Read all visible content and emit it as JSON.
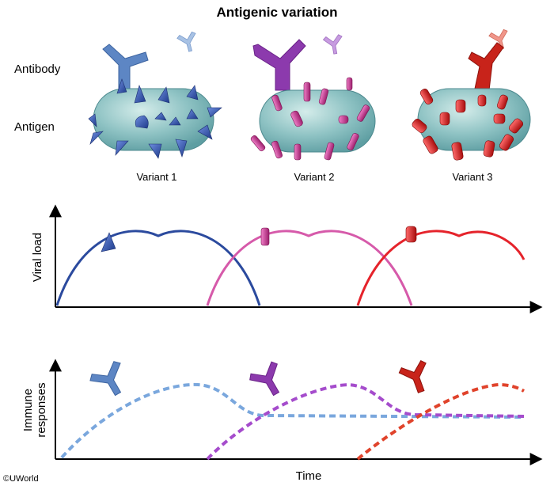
{
  "title": "Antigenic variation",
  "row_labels": {
    "antibody": "Antibody",
    "antigen": "Antigen"
  },
  "variants": [
    {
      "label": "Variant 1",
      "spike_shape": "pyramid",
      "color": "#2f4fa8",
      "antibody_color": "#5d86c4",
      "antibody_light": "#a8c2e4"
    },
    {
      "label": "Variant 2",
      "spike_shape": "cylinder",
      "color": "#c0308c",
      "antibody_color": "#8c3aad",
      "antibody_light": "#c79be0"
    },
    {
      "label": "Variant 3",
      "spike_shape": "peg",
      "color": "#d41f1f",
      "antibody_color": "#c8231a",
      "antibody_light": "#f0968a"
    }
  ],
  "viral_load_panel": {
    "y_axis_label": "Viral load",
    "curve_colors": [
      "#2b4a9e",
      "#d65aaa",
      "#e5232b"
    ]
  },
  "immune_panel": {
    "y_axis_label": "Immune responses",
    "y_axis_label_lines": [
      "Immune",
      "responses"
    ],
    "x_axis_label": "Time",
    "curve_colors": [
      "#7aa7dd",
      "#a54ccc",
      "#e0432b"
    ],
    "line_style": "dashed"
  },
  "copyright": "©UWorld"
}
